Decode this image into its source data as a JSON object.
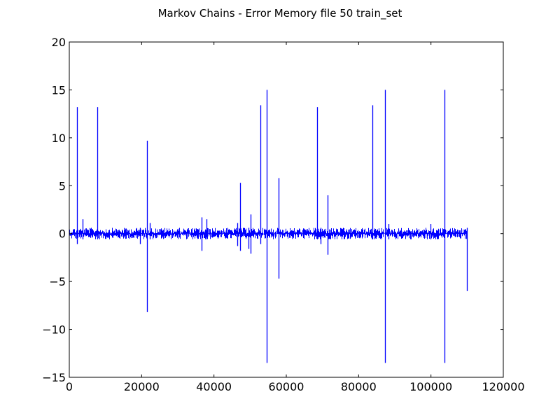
{
  "chart_data": {
    "type": "line",
    "title": "Markov Chains - Error Memory file 50 train_set",
    "xlabel": "",
    "ylabel": "",
    "xlim": [
      0,
      120000
    ],
    "ylim": [
      -15,
      20
    ],
    "x_ticks": [
      0,
      20000,
      40000,
      60000,
      80000,
      100000,
      120000
    ],
    "y_ticks": [
      -15,
      -10,
      -5,
      0,
      5,
      10,
      15,
      20
    ],
    "grid": false,
    "legend": "none",
    "series": [
      {
        "color": "#0000ff",
        "x_range": [
          0,
          110000
        ],
        "baseline_band": [
          -0.6,
          0.6
        ],
        "spikes": [
          {
            "x": 2200,
            "min": -1.1,
            "max": 13.2
          },
          {
            "x": 3600,
            "min": -0.6,
            "max": 1.5
          },
          {
            "x": 7800,
            "min": -0.6,
            "max": 13.2
          },
          {
            "x": 19500,
            "min": -1.1,
            "max": 0.6
          },
          {
            "x": 21500,
            "min": -8.2,
            "max": 9.7
          },
          {
            "x": 22300,
            "min": -0.6,
            "max": 1.1
          },
          {
            "x": 36500,
            "min": -1.8,
            "max": 1.7
          },
          {
            "x": 38000,
            "min": -0.6,
            "max": 1.5
          },
          {
            "x": 46500,
            "min": -1.3,
            "max": 1.1
          },
          {
            "x": 47200,
            "min": -1.8,
            "max": 5.3
          },
          {
            "x": 49500,
            "min": -1.6,
            "max": 0.6
          },
          {
            "x": 50200,
            "min": -2.1,
            "max": 2.0
          },
          {
            "x": 52800,
            "min": -1.1,
            "max": 13.4
          },
          {
            "x": 54500,
            "min": -13.5,
            "max": 15.0
          },
          {
            "x": 57800,
            "min": -4.7,
            "max": 5.8
          },
          {
            "x": 68500,
            "min": -0.6,
            "max": 13.2
          },
          {
            "x": 69500,
            "min": -1.1,
            "max": 0.6
          },
          {
            "x": 71500,
            "min": -2.2,
            "max": 4.0
          },
          {
            "x": 83800,
            "min": -0.6,
            "max": 13.4
          },
          {
            "x": 87300,
            "min": -13.5,
            "max": 15.0
          },
          {
            "x": 88300,
            "min": -0.6,
            "max": 1.0
          },
          {
            "x": 99800,
            "min": -0.6,
            "max": 1.0
          },
          {
            "x": 103700,
            "min": -13.5,
            "max": 15.0
          },
          {
            "x": 110000,
            "min": -6.0,
            "max": 0.6
          }
        ]
      }
    ]
  }
}
